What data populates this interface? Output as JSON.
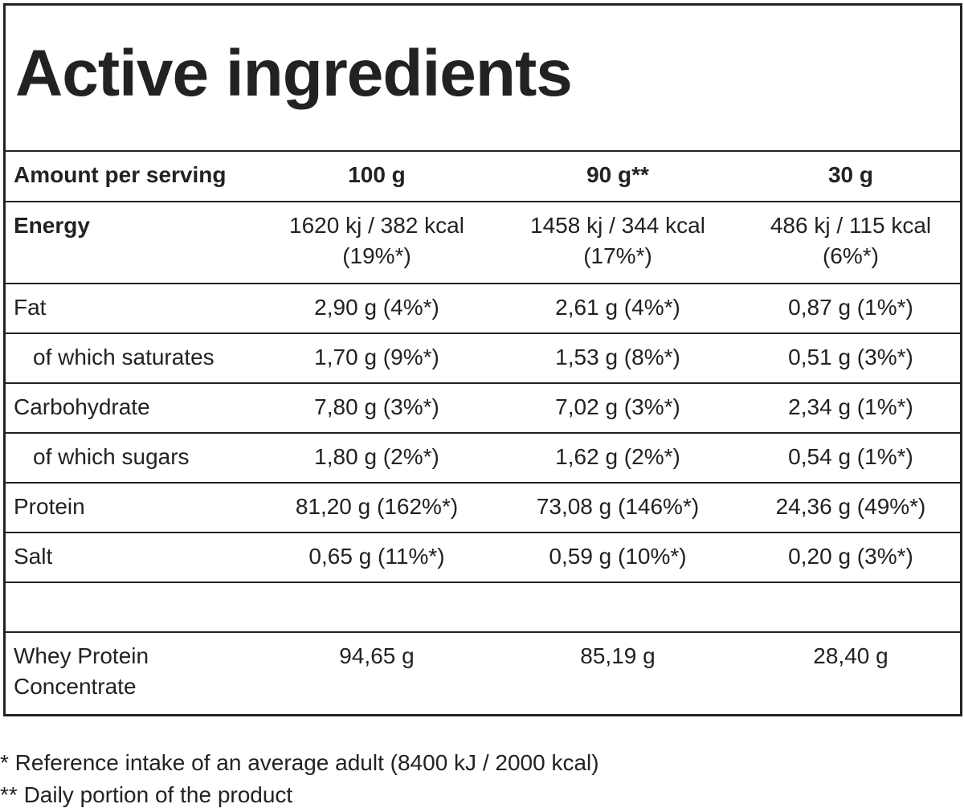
{
  "title": "Active ingredients",
  "table": {
    "header": [
      "Amount per serving",
      "100 g",
      "90 g**",
      "30 g"
    ],
    "rows": [
      {
        "label": [
          "Energy"
        ],
        "cells": [
          [
            "1620 kj / 382 kcal",
            "(19%*)"
          ],
          [
            "1458 kj / 344 kcal",
            "(17%*)"
          ],
          [
            "486 kj / 115 kcal",
            "(6%*)"
          ]
        ]
      },
      {
        "label": [
          "Fat"
        ],
        "cells": [
          [
            "2,90 g (4%*)"
          ],
          [
            "2,61 g (4%*)"
          ],
          [
            "0,87 g (1%*)"
          ]
        ]
      },
      {
        "label": [
          "of which saturates"
        ],
        "cells": [
          [
            "1,70 g (9%*)"
          ],
          [
            "1,53 g (8%*)"
          ],
          [
            "0,51 g (3%*)"
          ]
        ]
      },
      {
        "label": [
          "Carbohydrate"
        ],
        "cells": [
          [
            "7,80 g (3%*)"
          ],
          [
            "7,02 g (3%*)"
          ],
          [
            "2,34 g (1%*)"
          ]
        ]
      },
      {
        "label": [
          "of which sugars"
        ],
        "cells": [
          [
            "1,80 g (2%*)"
          ],
          [
            "1,62 g (2%*)"
          ],
          [
            "0,54 g (1%*)"
          ]
        ]
      },
      {
        "label": [
          "Protein"
        ],
        "cells": [
          [
            "81,20 g (162%*)"
          ],
          [
            "73,08 g (146%*)"
          ],
          [
            "24,36 g (49%*)"
          ]
        ]
      },
      {
        "label": [
          "Salt"
        ],
        "cells": [
          [
            "0,65 g (11%*)"
          ],
          [
            "0,59 g (10%*)"
          ],
          [
            "0,20 g (3%*)"
          ]
        ]
      },
      {
        "label": [
          "Whey Protein",
          "Concentrate"
        ],
        "cells": [
          [
            "94,65 g"
          ],
          [
            "85,19 g"
          ],
          [
            "28,40 g"
          ]
        ]
      }
    ]
  },
  "footnotes": [
    "* Reference intake of an average adult (8400 kJ / 2000 kcal)",
    "** Daily portion of the product"
  ]
}
